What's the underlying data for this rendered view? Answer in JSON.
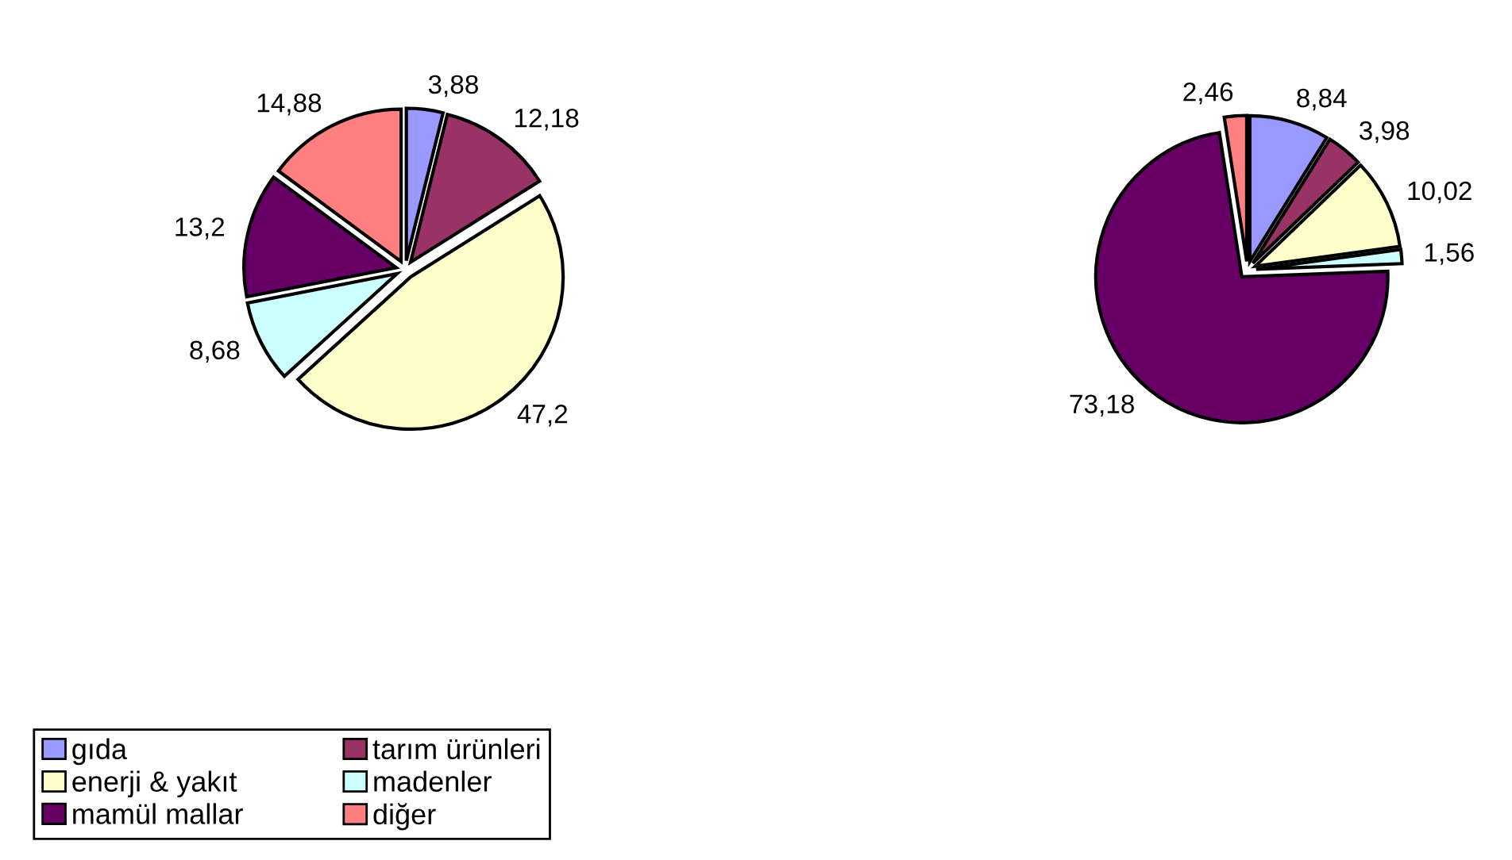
{
  "chart_data": [
    {
      "type": "pie",
      "categories": [
        "gıda",
        "tarım ürünleri",
        "enerji & yakıt",
        "madenler",
        "mamül mallar",
        "diğer"
      ],
      "values": [
        3.88,
        12.18,
        47.2,
        8.68,
        13.2,
        14.88
      ],
      "value_labels": [
        "3,88",
        "12,18",
        "47,2",
        "8,68",
        "13,2",
        "14,88"
      ],
      "colors": [
        "#9999ff",
        "#993366",
        "#ffffcc",
        "#ccffff",
        "#660066",
        "#ff8080"
      ],
      "legend": "bottom left"
    },
    {
      "type": "pie",
      "categories": [
        null,
        null,
        null,
        null,
        null,
        null
      ],
      "values": [
        8.84,
        3.98,
        10.02,
        1.56,
        73.18,
        2.46
      ],
      "value_labels": [
        "8,84",
        "3,98",
        "10,02",
        "1,56",
        "73,18",
        "2,46"
      ],
      "colors": [
        "#9999ff",
        "#993366",
        "#ffffcc",
        "#ccffff",
        "#660066",
        "#ff8080"
      ]
    }
  ]
}
